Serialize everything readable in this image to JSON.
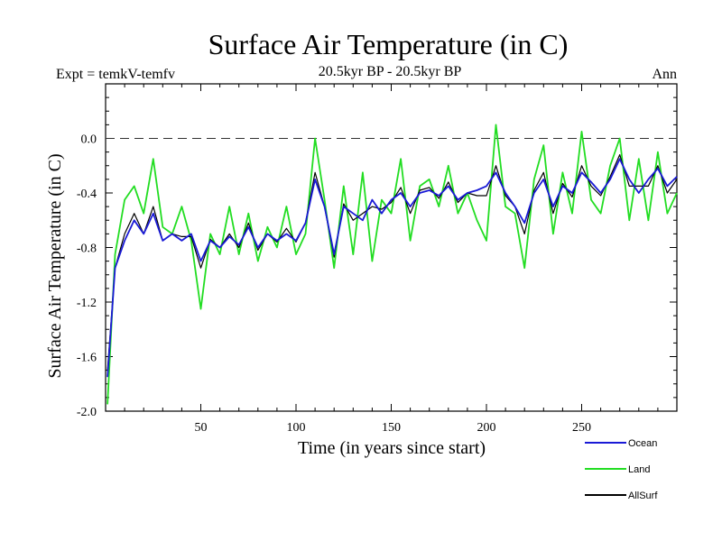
{
  "chart_data": {
    "type": "line",
    "title": "Surface Air Temperature (in C)",
    "subtitle_left": "Expt = temkV-temfv",
    "subtitle_center": "20.5kyr BP - 20.5kyr BP",
    "subtitle_right": "Ann",
    "xlabel": "Time (in years since start)",
    "ylabel": "Surface Air Temperature (in C)",
    "xlim": [
      0,
      300
    ],
    "ylim": [
      -2.0,
      0.4
    ],
    "xticks": [
      50,
      100,
      150,
      200,
      250
    ],
    "xtick_labels": [
      "50",
      "100",
      "150",
      "200",
      "250"
    ],
    "yticks": [
      -2.0,
      -1.6,
      -1.2,
      -0.8,
      -0.4,
      0.0
    ],
    "ytick_labels": [
      "-2.0",
      "-1.6",
      "-1.2",
      "-0.8",
      "-0.4",
      "0.0"
    ],
    "reference_line": 0.0,
    "x": [
      1,
      5,
      10,
      15,
      20,
      25,
      30,
      35,
      40,
      45,
      50,
      55,
      60,
      65,
      70,
      75,
      80,
      85,
      90,
      95,
      100,
      105,
      110,
      115,
      120,
      125,
      130,
      135,
      140,
      145,
      150,
      155,
      160,
      165,
      170,
      175,
      180,
      185,
      190,
      195,
      200,
      205,
      210,
      215,
      220,
      225,
      230,
      235,
      240,
      245,
      250,
      255,
      260,
      265,
      270,
      275,
      280,
      285,
      290,
      295,
      300
    ],
    "series": [
      {
        "name": "Ocean",
        "color": "#1a1ad6",
        "values": [
          -1.75,
          -0.95,
          -0.75,
          -0.6,
          -0.7,
          -0.55,
          -0.75,
          -0.7,
          -0.75,
          -0.7,
          -0.9,
          -0.75,
          -0.8,
          -0.72,
          -0.78,
          -0.65,
          -0.8,
          -0.7,
          -0.75,
          -0.7,
          -0.75,
          -0.62,
          -0.3,
          -0.5,
          -0.85,
          -0.5,
          -0.55,
          -0.6,
          -0.45,
          -0.55,
          -0.45,
          -0.4,
          -0.5,
          -0.4,
          -0.38,
          -0.42,
          -0.35,
          -0.45,
          -0.4,
          -0.38,
          -0.35,
          -0.25,
          -0.4,
          -0.5,
          -0.62,
          -0.4,
          -0.3,
          -0.5,
          -0.35,
          -0.4,
          -0.25,
          -0.32,
          -0.4,
          -0.3,
          -0.15,
          -0.3,
          -0.4,
          -0.3,
          -0.22,
          -0.35,
          -0.28
        ]
      },
      {
        "name": "Land",
        "color": "#22dd22",
        "values": [
          -1.95,
          -0.85,
          -0.45,
          -0.35,
          -0.55,
          -0.15,
          -0.65,
          -0.7,
          -0.5,
          -0.75,
          -1.25,
          -0.7,
          -0.85,
          -0.5,
          -0.85,
          -0.55,
          -0.9,
          -0.65,
          -0.8,
          -0.5,
          -0.85,
          -0.7,
          0.0,
          -0.45,
          -0.95,
          -0.35,
          -0.85,
          -0.25,
          -0.9,
          -0.45,
          -0.55,
          -0.15,
          -0.75,
          -0.35,
          -0.3,
          -0.5,
          -0.2,
          -0.55,
          -0.4,
          -0.6,
          -0.75,
          0.1,
          -0.5,
          -0.55,
          -0.95,
          -0.3,
          -0.05,
          -0.7,
          -0.25,
          -0.55,
          0.05,
          -0.45,
          -0.55,
          -0.2,
          0.0,
          -0.6,
          -0.15,
          -0.6,
          -0.1,
          -0.55,
          -0.4
        ]
      },
      {
        "name": "AllSurf",
        "color": "#000000",
        "values": [
          -1.7,
          -0.95,
          -0.7,
          -0.55,
          -0.7,
          -0.5,
          -0.75,
          -0.7,
          -0.72,
          -0.72,
          -0.95,
          -0.74,
          -0.8,
          -0.7,
          -0.8,
          -0.62,
          -0.82,
          -0.7,
          -0.76,
          -0.66,
          -0.76,
          -0.62,
          -0.25,
          -0.5,
          -0.87,
          -0.48,
          -0.6,
          -0.55,
          -0.5,
          -0.52,
          -0.47,
          -0.36,
          -0.55,
          -0.38,
          -0.36,
          -0.44,
          -0.32,
          -0.47,
          -0.4,
          -0.42,
          -0.42,
          -0.2,
          -0.42,
          -0.5,
          -0.7,
          -0.38,
          -0.25,
          -0.55,
          -0.33,
          -0.43,
          -0.2,
          -0.35,
          -0.42,
          -0.28,
          -0.12,
          -0.35,
          -0.35,
          -0.35,
          -0.2,
          -0.4,
          -0.3
        ]
      }
    ],
    "legend": {
      "placement": "bottom-right"
    }
  }
}
